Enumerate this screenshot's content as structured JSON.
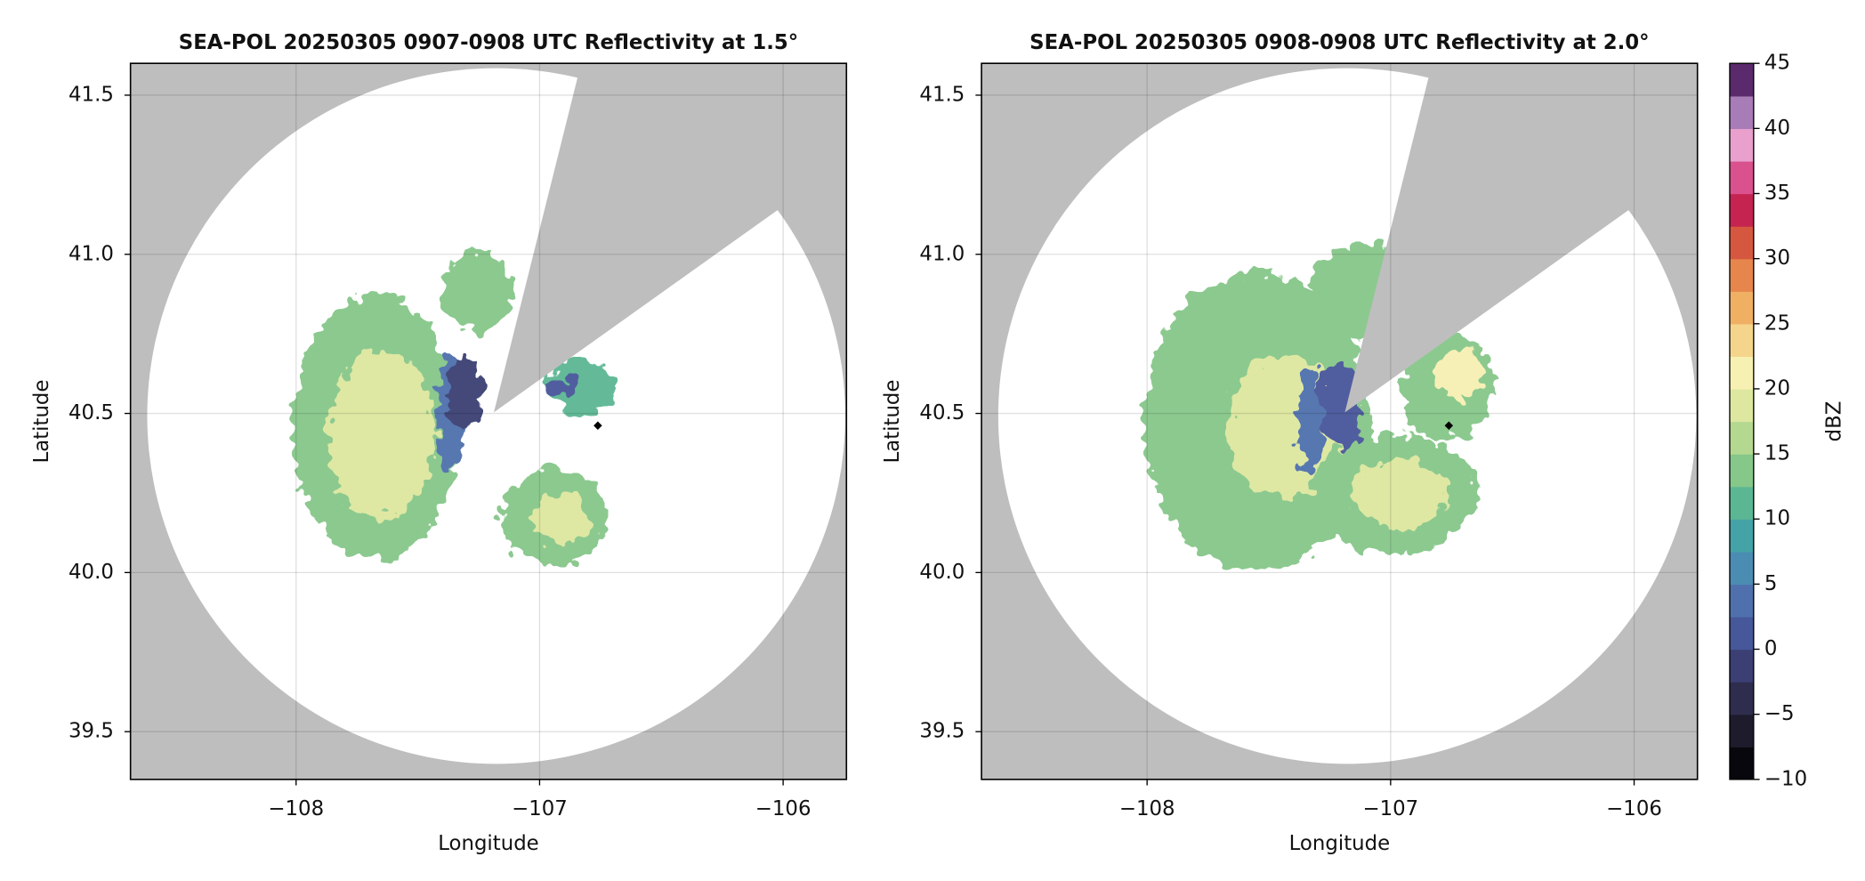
{
  "chart_data": [
    {
      "type": "radar-ppi",
      "title": "SEA-POL 20250305 0907-0908 UTC Reflectivity at 1.5°",
      "xlabel": "Longitude",
      "ylabel": "Latitude",
      "xlim": [
        -108.68,
        -105.74
      ],
      "ylim": [
        39.35,
        41.6
      ],
      "xticks": [
        {
          "value": -108,
          "label": "−108"
        },
        {
          "value": -107,
          "label": "−107"
        },
        {
          "value": -106,
          "label": "−106"
        }
      ],
      "yticks": [
        39.5,
        {
          "value": 40,
          "label": "40.0"
        },
        40.5,
        {
          "value": 41,
          "label": "41.0"
        },
        41.5
      ],
      "grid": true,
      "background": "#bebebe"
    },
    {
      "type": "radar-ppi",
      "title": "SEA-POL 20250305 0908-0908 UTC Reflectivity at 2.0°",
      "xlabel": "Longitude",
      "ylabel": "Latitude",
      "xlim": [
        -108.68,
        -105.74
      ],
      "ylim": [
        39.35,
        41.6
      ],
      "xticks": [
        {
          "value": -108,
          "label": "−108"
        },
        {
          "value": -107,
          "label": "−107"
        },
        {
          "value": -106,
          "label": "−106"
        }
      ],
      "yticks": [
        39.5,
        {
          "value": 40,
          "label": "40.0"
        },
        40.5,
        {
          "value": 41,
          "label": "41.0"
        },
        41.5
      ],
      "grid": true,
      "background": "#bebebe",
      "colorbar": {
        "label": "dBZ",
        "lim": [
          -10,
          45
        ],
        "ticks": [
          {
            "value": -10,
            "label": "−10"
          },
          {
            "value": -5,
            "label": "−5"
          },
          0,
          5,
          10,
          15,
          20,
          25,
          30,
          35,
          40,
          45
        ],
        "colors": [
          "#08070d",
          "#1d1b2c",
          "#2e2d4d",
          "#3b3f73",
          "#46579a",
          "#4f70ad",
          "#4b8db2",
          "#44a3a6",
          "#5bb793",
          "#86c78a",
          "#b4d88f",
          "#dde79f",
          "#f7f0b3",
          "#f5d58c",
          "#f0b064",
          "#e6864c",
          "#d6573f",
          "#c4244f",
          "#d9518d",
          "#e9a0cd",
          "#a77cb7",
          "#5a2a6c"
        ]
      }
    }
  ]
}
